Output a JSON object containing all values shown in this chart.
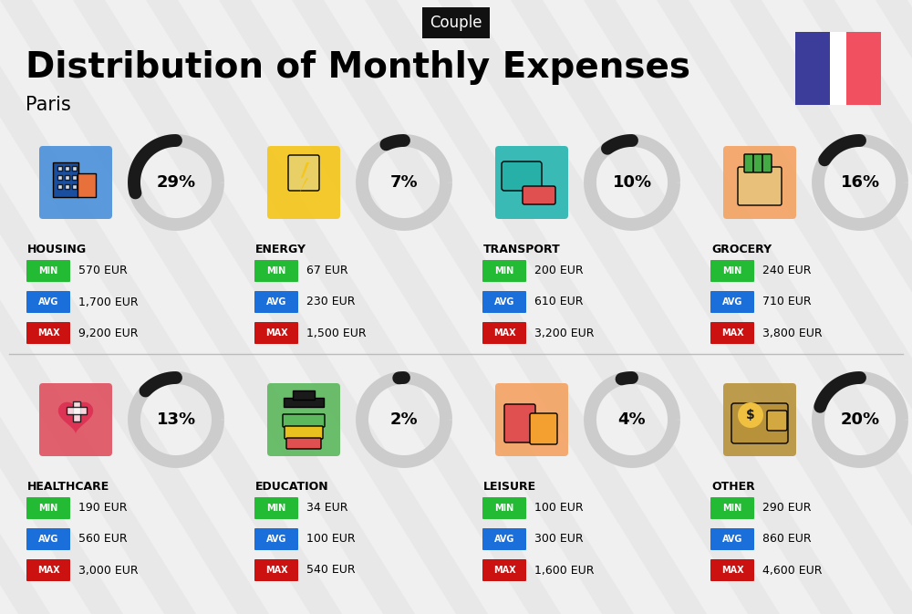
{
  "title": "Distribution of Monthly Expenses",
  "subtitle": "Paris",
  "badge": "Couple",
  "bg_color": "#f0f0f0",
  "categories": [
    {
      "name": "HOUSING",
      "pct": 29,
      "min_val": "570 EUR",
      "avg_val": "1,700 EUR",
      "max_val": "9,200 EUR",
      "row": 0,
      "col": 0
    },
    {
      "name": "ENERGY",
      "pct": 7,
      "min_val": "67 EUR",
      "avg_val": "230 EUR",
      "max_val": "1,500 EUR",
      "row": 0,
      "col": 1
    },
    {
      "name": "TRANSPORT",
      "pct": 10,
      "min_val": "200 EUR",
      "avg_val": "610 EUR",
      "max_val": "3,200 EUR",
      "row": 0,
      "col": 2
    },
    {
      "name": "GROCERY",
      "pct": 16,
      "min_val": "240 EUR",
      "avg_val": "710 EUR",
      "max_val": "3,800 EUR",
      "row": 0,
      "col": 3
    },
    {
      "name": "HEALTHCARE",
      "pct": 13,
      "min_val": "190 EUR",
      "avg_val": "560 EUR",
      "max_val": "3,000 EUR",
      "row": 1,
      "col": 0
    },
    {
      "name": "EDUCATION",
      "pct": 2,
      "min_val": "34 EUR",
      "avg_val": "100 EUR",
      "max_val": "540 EUR",
      "row": 1,
      "col": 1
    },
    {
      "name": "LEISURE",
      "pct": 4,
      "min_val": "100 EUR",
      "avg_val": "300 EUR",
      "max_val": "1,600 EUR",
      "row": 1,
      "col": 2
    },
    {
      "name": "OTHER",
      "pct": 20,
      "min_val": "290 EUR",
      "avg_val": "860 EUR",
      "max_val": "4,600 EUR",
      "row": 1,
      "col": 3
    }
  ],
  "color_min": "#22bb33",
  "color_avg": "#1a6fdb",
  "color_max": "#cc1111",
  "donut_active": "#1a1a1a",
  "donut_inactive": "#cccccc",
  "france_blue": "#3c3c9b",
  "france_red": "#f05060",
  "stripe_color": "#e8e8e8",
  "badge_bg": "#111111",
  "title_size": 28,
  "subtitle_size": 15,
  "badge_size": 12,
  "cat_name_size": 9,
  "val_size": 9,
  "tag_size": 7,
  "pct_size": 13
}
